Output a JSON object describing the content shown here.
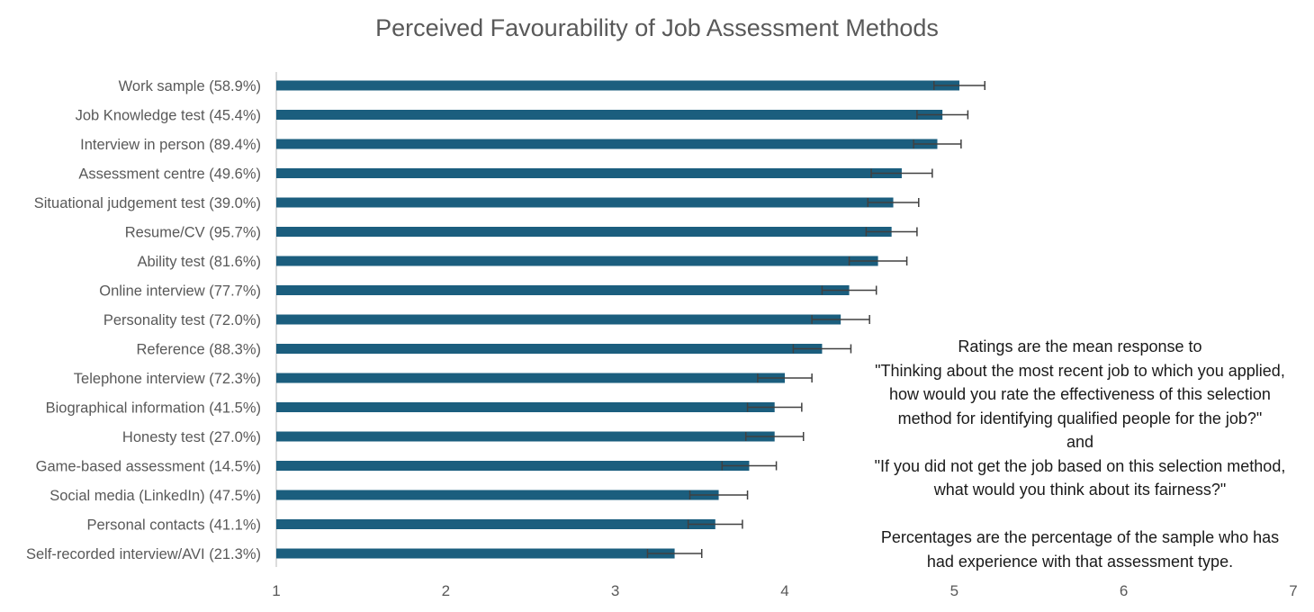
{
  "chart_data": {
    "type": "bar",
    "orientation": "horizontal",
    "title": "Perceived Favourability of Job Assessment Methods",
    "xlabel": "",
    "ylabel": "",
    "xlim": [
      1,
      7
    ],
    "xticks": [
      1,
      2,
      3,
      4,
      5,
      6,
      7
    ],
    "grid": false,
    "legend": "none",
    "error_bars": true,
    "categories": [
      "Work sample (58.9%)",
      "Job Knowledge test (45.4%)",
      "Interview in person (89.4%)",
      "Assessment centre (49.6%)",
      "Situational judgement test (39.0%)",
      "Resume/CV (95.7%)",
      "Ability test (81.6%)",
      "Online interview (77.7%)",
      "Personality test (72.0%)",
      "Reference (88.3%)",
      "Telephone interview (72.3%)",
      "Biographical information (41.5%)",
      "Honesty test (27.0%)",
      "Game-based assessment (14.5%)",
      "Social media (LinkedIn) (47.5%)",
      "Personal contacts (41.1%)",
      "Self-recorded interview/AVI (21.3%)"
    ],
    "values": [
      5.03,
      4.93,
      4.9,
      4.69,
      4.64,
      4.63,
      4.55,
      4.38,
      4.33,
      4.22,
      4.0,
      3.94,
      3.94,
      3.79,
      3.61,
      3.59,
      3.35
    ],
    "error": [
      0.15,
      0.15,
      0.14,
      0.18,
      0.15,
      0.15,
      0.17,
      0.16,
      0.17,
      0.17,
      0.16,
      0.16,
      0.17,
      0.16,
      0.17,
      0.16,
      0.16
    ],
    "colors": {
      "bar": "#1b5e7e",
      "axis": "#d0d0d0",
      "text": "#595959",
      "error": "#404040"
    },
    "annotation": [
      "Ratings are the mean response to",
      "\"Thinking about the most recent job to which you applied,",
      "how would you rate the effectiveness of this selection",
      "method for identifying qualified people for the job?\"",
      "and",
      "\"If you did not get the job based on this selection method,",
      "what would you think about its fairness?\"",
      "",
      "Percentages are the percentage of the sample who has",
      "had experience with that assessment type."
    ]
  }
}
